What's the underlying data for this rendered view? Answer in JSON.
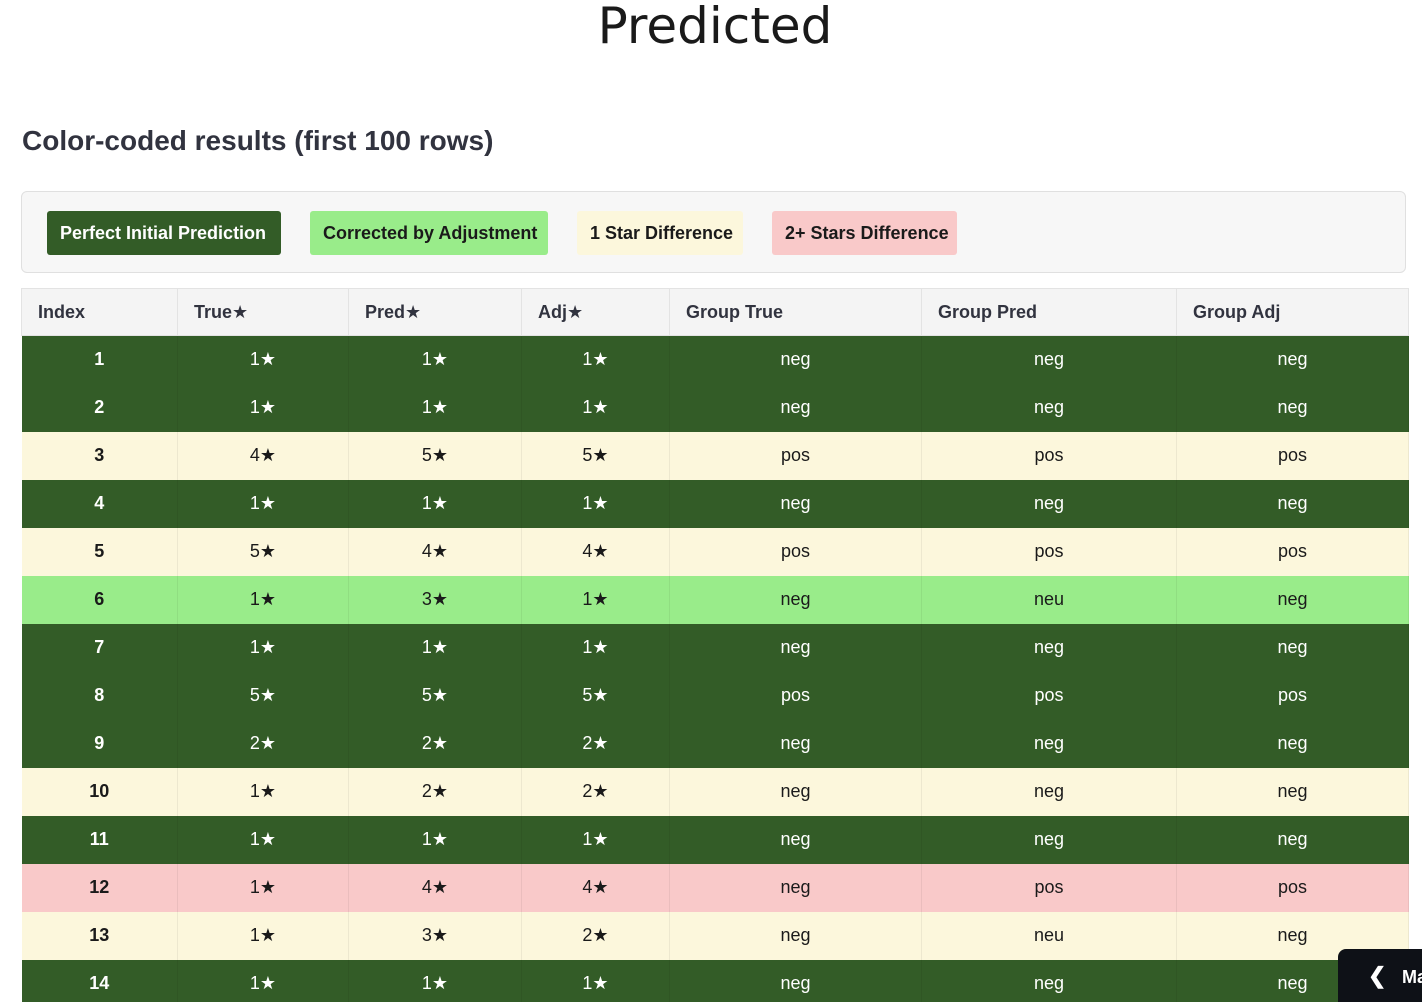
{
  "chart_title": "Predicted",
  "section_title": "Color-coded results (first 100 rows)",
  "legend": {
    "perfect": "Perfect Initial Prediction",
    "corrected": "Corrected by Adjustment",
    "one_star": "1 Star Difference",
    "two_star": "2+ Stars Difference"
  },
  "colors": {
    "perfect": "#335c27",
    "corrected": "#99ec8a",
    "one_star": "#fcf7dc",
    "two_star": "#f9c9c9"
  },
  "table": {
    "columns": [
      "Index",
      "True★",
      "Pred★",
      "Adj★",
      "Group True",
      "Group Pred",
      "Group Adj"
    ],
    "rows": [
      {
        "status": "perfect",
        "cells": [
          "1",
          "1★",
          "1★",
          "1★",
          "neg",
          "neg",
          "neg"
        ]
      },
      {
        "status": "perfect",
        "cells": [
          "2",
          "1★",
          "1★",
          "1★",
          "neg",
          "neg",
          "neg"
        ]
      },
      {
        "status": "one",
        "cells": [
          "3",
          "4★",
          "5★",
          "5★",
          "pos",
          "pos",
          "pos"
        ]
      },
      {
        "status": "perfect",
        "cells": [
          "4",
          "1★",
          "1★",
          "1★",
          "neg",
          "neg",
          "neg"
        ]
      },
      {
        "status": "one",
        "cells": [
          "5",
          "5★",
          "4★",
          "4★",
          "pos",
          "pos",
          "pos"
        ]
      },
      {
        "status": "corrected",
        "cells": [
          "6",
          "1★",
          "3★",
          "1★",
          "neg",
          "neu",
          "neg"
        ]
      },
      {
        "status": "perfect",
        "cells": [
          "7",
          "1★",
          "1★",
          "1★",
          "neg",
          "neg",
          "neg"
        ]
      },
      {
        "status": "perfect",
        "cells": [
          "8",
          "5★",
          "5★",
          "5★",
          "pos",
          "pos",
          "pos"
        ]
      },
      {
        "status": "perfect",
        "cells": [
          "9",
          "2★",
          "2★",
          "2★",
          "neg",
          "neg",
          "neg"
        ]
      },
      {
        "status": "one",
        "cells": [
          "10",
          "1★",
          "2★",
          "2★",
          "neg",
          "neg",
          "neg"
        ]
      },
      {
        "status": "perfect",
        "cells": [
          "11",
          "1★",
          "1★",
          "1★",
          "neg",
          "neg",
          "neg"
        ]
      },
      {
        "status": "two",
        "cells": [
          "12",
          "1★",
          "4★",
          "4★",
          "neg",
          "pos",
          "pos"
        ]
      },
      {
        "status": "one",
        "cells": [
          "13",
          "1★",
          "3★",
          "2★",
          "neg",
          "neu",
          "neg"
        ]
      },
      {
        "status": "perfect",
        "cells": [
          "14",
          "1★",
          "1★",
          "1★",
          "neg",
          "neg",
          "neg"
        ]
      }
    ]
  },
  "corner_widget": {
    "icon": "chevron-left-icon",
    "label": "Ma"
  }
}
